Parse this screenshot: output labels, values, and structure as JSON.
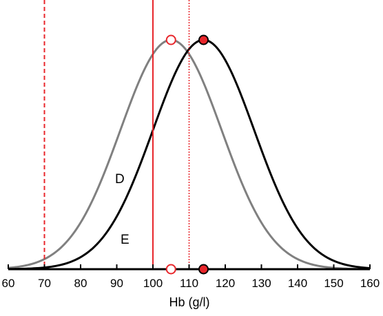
{
  "chart_data": {
    "type": "line",
    "xlabel": "Hb (g/l)",
    "xlim": [
      60,
      160
    ],
    "xticks": [
      "60",
      "70",
      "80",
      "90",
      "100",
      "110",
      "120",
      "130",
      "140",
      "150",
      "160"
    ],
    "grid": false,
    "series": [
      {
        "name": "D",
        "mean": 105,
        "sd": 14,
        "color": "#808080",
        "marker": "open-circle"
      },
      {
        "name": "E",
        "mean": 114,
        "sd": 14,
        "color": "#000000",
        "marker": "filled-circle"
      }
    ],
    "reference_lines": [
      {
        "x": 70,
        "style": "dashed",
        "color": "#e8262b"
      },
      {
        "x": 100,
        "style": "solid",
        "color": "#e8262b"
      },
      {
        "x": 110,
        "style": "dotted",
        "color": "#e8262b"
      }
    ],
    "marker_colors": {
      "fill": "#e8262b",
      "stroke_open": "#e8262b",
      "stroke_filled": "#000000"
    }
  }
}
